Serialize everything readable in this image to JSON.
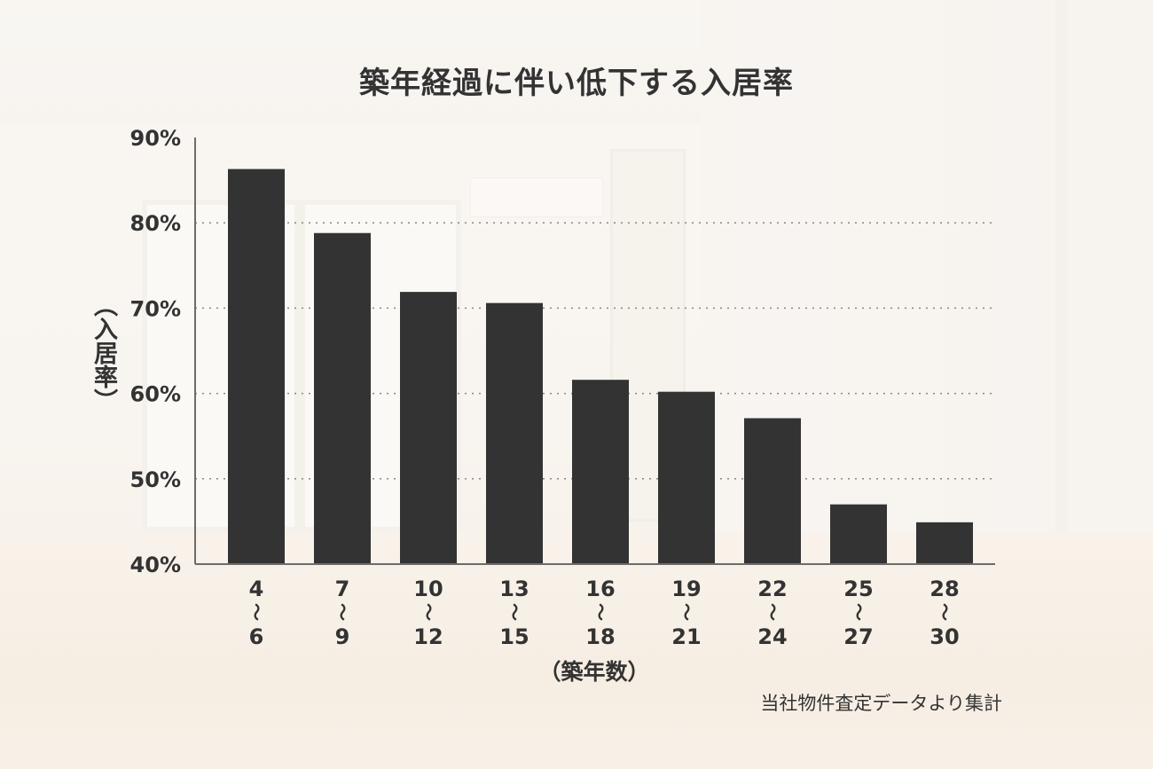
{
  "chart_data": {
    "type": "bar",
    "title": "築年経過に伴い低下する入居率",
    "ylabel": "（入居率）",
    "xlabel": "（築年数）",
    "source_note": "当社物件査定データより集計",
    "ylim": [
      40,
      90
    ],
    "yticks": [
      "90%",
      "80%",
      "70%",
      "60%",
      "50%",
      "40%"
    ],
    "ytick_values": [
      90,
      80,
      70,
      60,
      50,
      40
    ],
    "grid": "dotted horizontal",
    "categories": [
      {
        "from": "4",
        "sep": "〜",
        "to": "6"
      },
      {
        "from": "7",
        "sep": "〜",
        "to": "9"
      },
      {
        "from": "10",
        "sep": "〜",
        "to": "12"
      },
      {
        "from": "13",
        "sep": "〜",
        "to": "15"
      },
      {
        "from": "16",
        "sep": "〜",
        "to": "18"
      },
      {
        "from": "19",
        "sep": "〜",
        "to": "21"
      },
      {
        "from": "22",
        "sep": "〜",
        "to": "24"
      },
      {
        "from": "25",
        "sep": "〜",
        "to": "27"
      },
      {
        "from": "28",
        "sep": "〜",
        "to": "30"
      }
    ],
    "values": [
      86.3,
      78.8,
      71.9,
      70.6,
      61.6,
      60.2,
      57.1,
      47.0,
      44.9
    ],
    "bar_color": "#333333"
  }
}
